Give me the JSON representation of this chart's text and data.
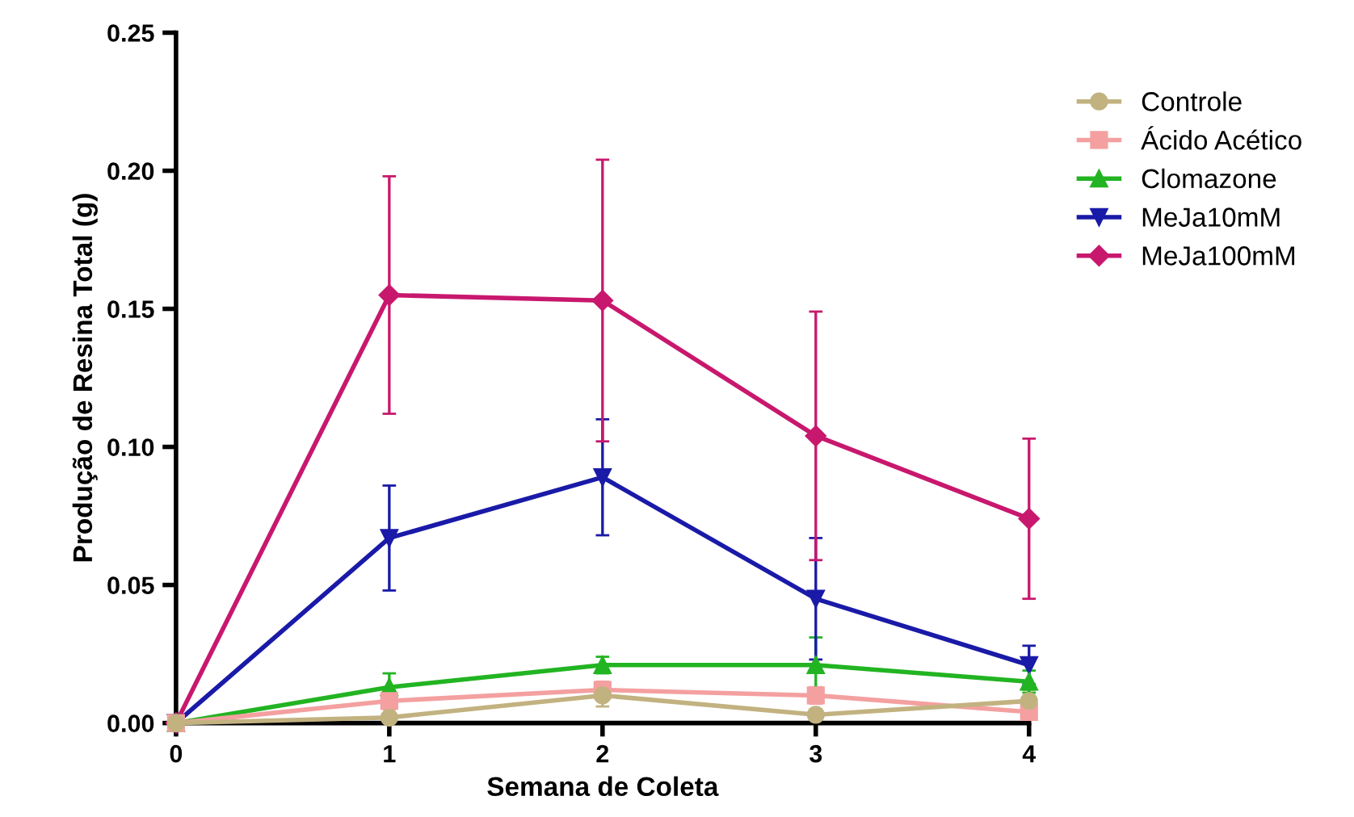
{
  "chart_data": {
    "type": "line",
    "xlabel": "Semana de Coleta",
    "ylabel": "Produção de Resina Total (g)",
    "x": [
      0,
      1,
      2,
      3,
      4
    ],
    "xlim": [
      0,
      4
    ],
    "xticks": [
      0,
      1,
      2,
      3,
      4
    ],
    "ylim": [
      0,
      0.25
    ],
    "yticks": [
      {
        "value": 0,
        "label": "0.00"
      },
      {
        "value": 0.05,
        "label": "0.05"
      },
      {
        "value": 0.1,
        "label": "0.10"
      },
      {
        "value": 0.15,
        "label": "0.15"
      },
      {
        "value": 0.2,
        "label": "0.20"
      },
      {
        "value": 0.25,
        "label": "0.25"
      }
    ],
    "grid": false,
    "legend": "right",
    "line_style": "solid",
    "series": [
      {
        "name": "Controle",
        "color": "#c2b280",
        "marker": "circle",
        "values": [
          0,
          0.002,
          0.01,
          0.003,
          0.008
        ],
        "errors": [
          null,
          0.001,
          0.004,
          0.002,
          0.004
        ]
      },
      {
        "name": "Ácido Acético",
        "color": "#f4a0a0",
        "marker": "square",
        "values": [
          0,
          0.008,
          0.012,
          0.01,
          0.004
        ],
        "errors": [
          null,
          0.003,
          0.003,
          0.003,
          0.002
        ]
      },
      {
        "name": "Clomazone",
        "color": "#22b422",
        "marker": "triangle",
        "values": [
          0,
          0.013,
          0.021,
          0.021,
          0.015
        ],
        "errors": [
          null,
          0.005,
          0.003,
          0.01,
          0.004
        ]
      },
      {
        "name": "MeJa10mM",
        "color": "#1a1aa8",
        "marker": "triangle_down",
        "values": [
          0,
          0.067,
          0.089,
          0.045,
          0.021
        ],
        "errors": [
          null,
          0.019,
          0.021,
          0.022,
          0.007
        ]
      },
      {
        "name": "MeJa100mM",
        "color": "#c8186e",
        "marker": "diamond",
        "values": [
          0,
          0.155,
          0.153,
          0.104,
          0.074
        ],
        "errors": [
          null,
          0.043,
          0.051,
          0.045,
          0.029
        ]
      }
    ]
  }
}
